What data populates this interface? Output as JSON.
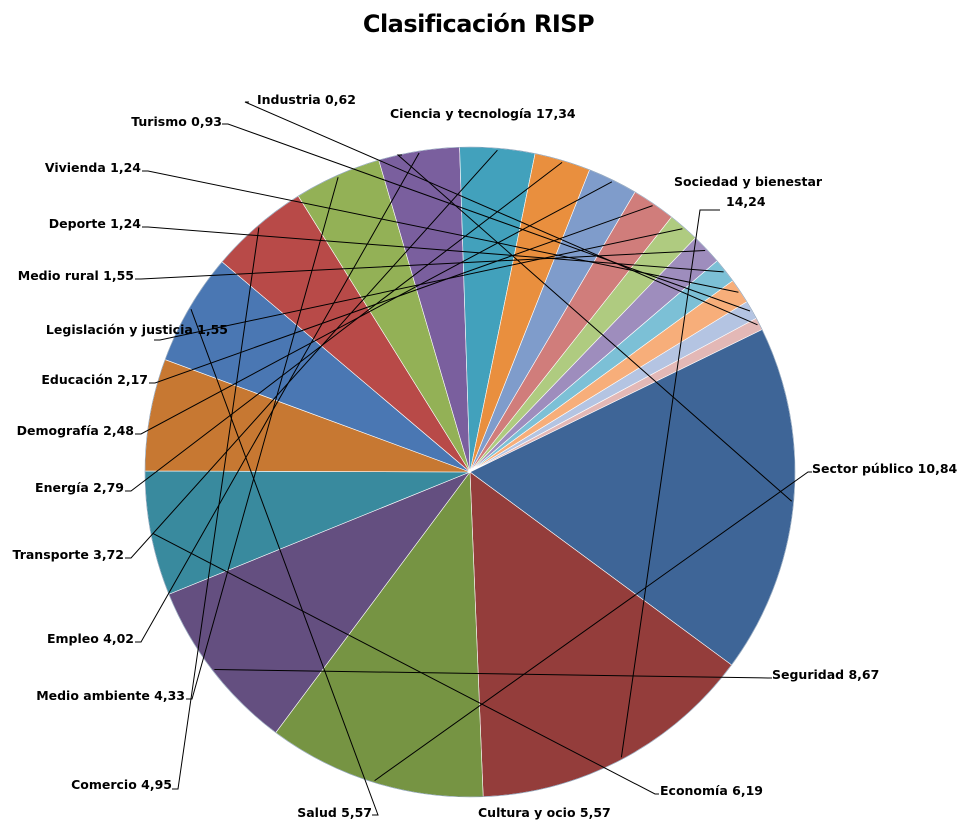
{
  "chart_data": {
    "type": "pie",
    "title": "Clasificación RISP",
    "slices": [
      {
        "label": "Ciencia y tecnología",
        "value": 17.34,
        "value_text": "17,34",
        "color": "#3E6597"
      },
      {
        "label": "Sociedad y bienestar",
        "value": 14.24,
        "value_text": "14,24",
        "color": "#943D3B"
      },
      {
        "label": "Sector público",
        "value": 10.84,
        "value_text": "10,84",
        "color": "#769443"
      },
      {
        "label": "Seguridad",
        "value": 8.67,
        "value_text": "8,67",
        "color": "#644F80"
      },
      {
        "label": "Economía",
        "value": 6.19,
        "value_text": "6,19",
        "color": "#398A9E"
      },
      {
        "label": "Cultura y ocio",
        "value": 5.57,
        "value_text": "5,57",
        "color": "#C77832"
      },
      {
        "label": "Salud",
        "value": 5.57,
        "value_text": "5,57",
        "color": "#4A77B3"
      },
      {
        "label": "Comercio",
        "value": 4.95,
        "value_text": "4,95",
        "color": "#B84A48"
      },
      {
        "label": "Medio ambiente",
        "value": 4.33,
        "value_text": "4,33",
        "color": "#93B156"
      },
      {
        "label": "Empleo",
        "value": 4.02,
        "value_text": "4,02",
        "color": "#7A5F9E"
      },
      {
        "label": "Transporte",
        "value": 3.72,
        "value_text": "3,72",
        "color": "#42A1BC"
      },
      {
        "label": "Energía",
        "value": 2.79,
        "value_text": "2,79",
        "color": "#E98F3E"
      },
      {
        "label": "Demografía",
        "value": 2.48,
        "value_text": "2,48",
        "color": "#7F9CCB"
      },
      {
        "label": "Educación",
        "value": 2.17,
        "value_text": "2,17",
        "color": "#D07D7B"
      },
      {
        "label": "Legislación y justicia",
        "value": 1.55,
        "value_text": "1,55",
        "color": "#AFCB80"
      },
      {
        "label": "Medio rural",
        "value": 1.55,
        "value_text": "1,55",
        "color": "#9E8DBD"
      },
      {
        "label": "Deporte",
        "value": 1.24,
        "value_text": "1,24",
        "color": "#7CC0D6"
      },
      {
        "label": "Vivienda",
        "value": 1.24,
        "value_text": "1,24",
        "color": "#F7AE7A"
      },
      {
        "label": "Turismo",
        "value": 0.93,
        "value_text": "0,93",
        "color": "#B4C4E2"
      },
      {
        "label": "Industria",
        "value": 0.62,
        "value_text": "0,62",
        "color": "#E3B8B6"
      }
    ]
  }
}
